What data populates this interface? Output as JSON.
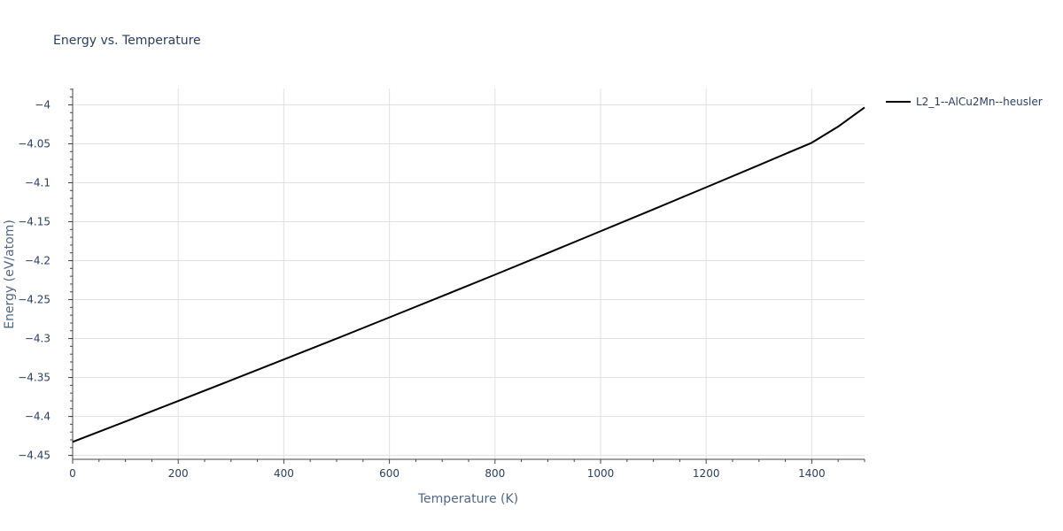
{
  "chart_data": {
    "type": "line",
    "title": "Energy vs. Temperature",
    "xlabel": "Temperature (K)",
    "ylabel": "Energy (eV/atom)",
    "xlim": [
      0,
      1500
    ],
    "ylim": [
      -4.455,
      -3.979
    ],
    "x_ticks": [
      0,
      200,
      400,
      600,
      800,
      1000,
      1200,
      1400
    ],
    "y_ticks": [
      -4,
      -4.05,
      -4.1,
      -4.15,
      -4.2,
      -4.25,
      -4.3,
      -4.35,
      -4.4,
      -4.45
    ],
    "y_tick_labels": [
      "−4",
      "−4.05",
      "−4.1",
      "−4.15",
      "−4.2",
      "−4.25",
      "−4.3",
      "−4.35",
      "−4.4",
      "−4.45"
    ],
    "grid": true,
    "legend_position": "top-right-outside",
    "series": [
      {
        "name": "L2_1--AlCu2Mn--heusler",
        "color": "#000000",
        "x": [
          0,
          100,
          200,
          300,
          400,
          500,
          600,
          700,
          800,
          900,
          1000,
          1100,
          1200,
          1300,
          1400,
          1450,
          1500
        ],
        "y": [
          -4.4326,
          -4.4065,
          -4.3801,
          -4.3536,
          -4.3269,
          -4.3,
          -4.2728,
          -4.2455,
          -4.218,
          -4.1902,
          -4.1622,
          -4.1341,
          -4.1058,
          -4.0773,
          -4.0486,
          -4.0279,
          -4.0033
        ]
      }
    ]
  }
}
